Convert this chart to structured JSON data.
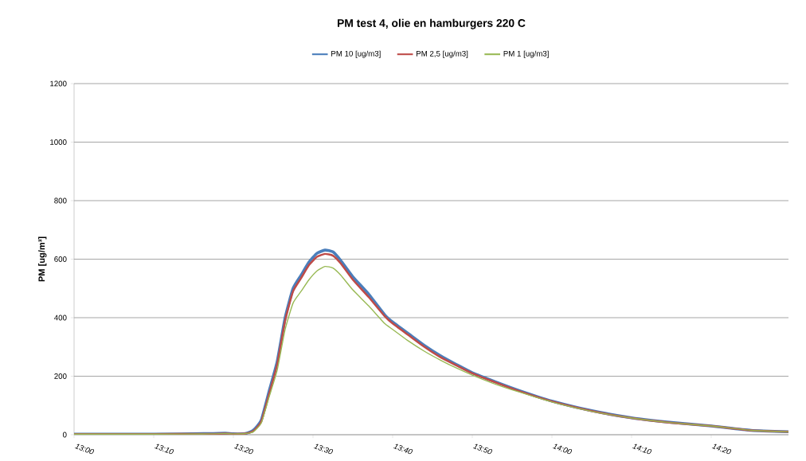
{
  "chart_data": {
    "type": "line",
    "title": "PM test 4, olie en hamburgers  220 C",
    "ylabel": "PM [ug/m³]",
    "x": [
      13.0,
      13.1667,
      13.2833,
      13.3167,
      13.3333,
      13.3583,
      13.375,
      13.3917,
      13.4083,
      13.425,
      13.4417,
      13.4583,
      13.475,
      13.4917,
      13.5083,
      13.525,
      13.5417,
      13.5583,
      13.5833,
      13.6167,
      13.65,
      13.6667,
      13.7,
      13.7333,
      13.7667,
      13.8,
      13.8333,
      13.8833,
      13.9333,
      14.0,
      14.0833,
      14.1667,
      14.25,
      14.3333,
      14.4167,
      14.495
    ],
    "series": [
      {
        "name": "PM 10 [ug/m3]",
        "color": "#4a7ebb",
        "values": [
          2,
          2,
          4,
          5,
          3,
          4,
          15,
          50,
          150,
          250,
          400,
          500,
          545,
          590,
          620,
          631,
          625,
          595,
          540,
          480,
          410,
          385,
          345,
          305,
          270,
          240,
          212,
          180,
          150,
          115,
          82,
          58,
          42,
          30,
          15,
          10
        ]
      },
      {
        "name": "PM 2,5 [ug/m3]",
        "color": "#be4b48",
        "values": [
          2,
          2,
          3,
          4,
          3,
          4,
          12,
          45,
          140,
          240,
          390,
          490,
          535,
          580,
          608,
          618,
          612,
          585,
          530,
          470,
          405,
          380,
          340,
          300,
          265,
          237,
          210,
          178,
          148,
          114,
          81,
          57,
          41,
          30,
          15,
          10
        ]
      },
      {
        "name": "PM 1 [ug/m3]",
        "color": "#98b954",
        "values": [
          2,
          2,
          3,
          4,
          3,
          4,
          10,
          40,
          130,
          220,
          360,
          450,
          490,
          530,
          560,
          575,
          570,
          545,
          495,
          440,
          380,
          360,
          320,
          285,
          255,
          228,
          204,
          172,
          145,
          112,
          80,
          57,
          41,
          30,
          15,
          10
        ]
      }
    ],
    "xlim": [
      13.0,
      14.495
    ],
    "xticks": [
      {
        "value": 13.0,
        "label": "13:00"
      },
      {
        "value": 13.1667,
        "label": "13:10"
      },
      {
        "value": 13.3333,
        "label": "13:20"
      },
      {
        "value": 13.5,
        "label": "13:30"
      },
      {
        "value": 13.6667,
        "label": "13:40"
      },
      {
        "value": 13.8333,
        "label": "13:50"
      },
      {
        "value": 14.0,
        "label": "14:00"
      },
      {
        "value": 14.1667,
        "label": "14:10"
      },
      {
        "value": 14.3333,
        "label": "14:20"
      }
    ],
    "ylim": [
      0,
      1200
    ],
    "yticks": [
      0,
      200,
      400,
      600,
      800,
      1000,
      1200
    ],
    "grid": "y",
    "legend": "top",
    "marker": "none",
    "line_style": "solid"
  }
}
